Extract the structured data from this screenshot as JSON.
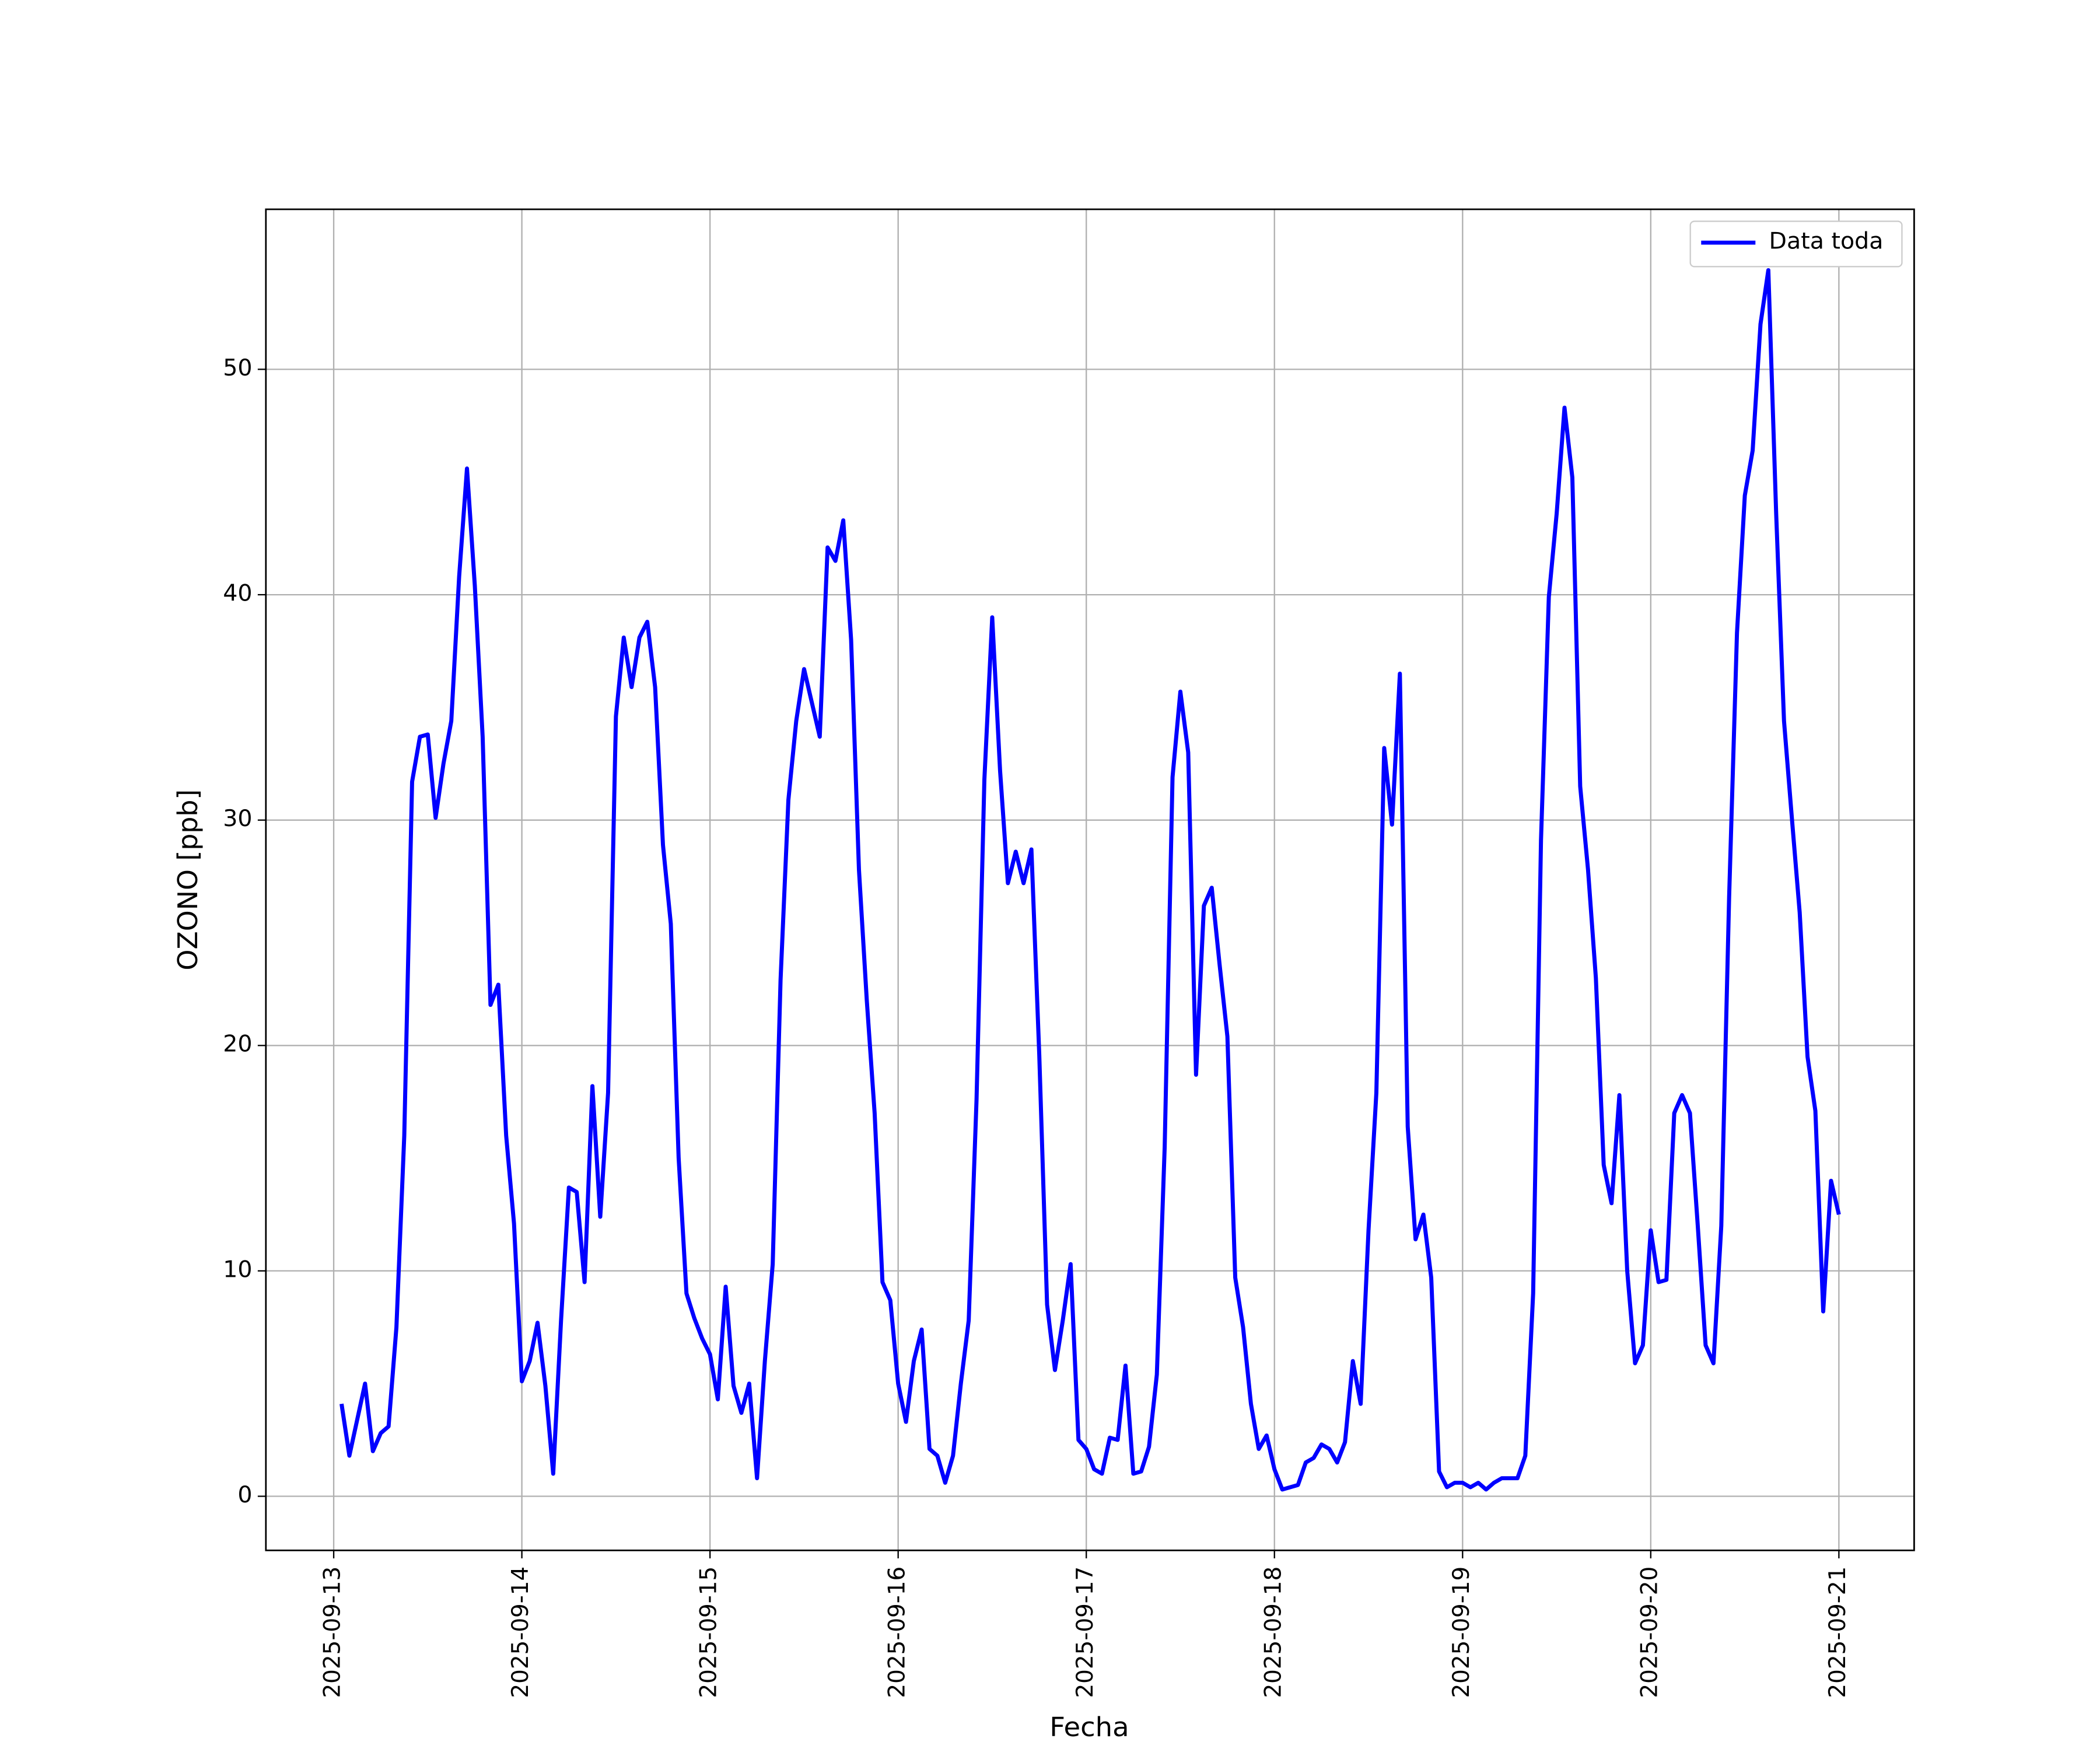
{
  "chart_data": {
    "type": "line",
    "xlabel": "Fecha",
    "ylabel": "OZONO [ppb]",
    "x": [
      "2025-09-13 01:00",
      "2025-09-13 02:00",
      "2025-09-13 03:00",
      "2025-09-13 04:00",
      "2025-09-13 05:00",
      "2025-09-13 06:00",
      "2025-09-13 07:00",
      "2025-09-13 08:00",
      "2025-09-13 09:00",
      "2025-09-13 10:00",
      "2025-09-13 11:00",
      "2025-09-13 12:00",
      "2025-09-13 13:00",
      "2025-09-13 14:00",
      "2025-09-13 15:00",
      "2025-09-13 16:00",
      "2025-09-13 17:00",
      "2025-09-13 18:00",
      "2025-09-13 19:00",
      "2025-09-13 20:00",
      "2025-09-13 21:00",
      "2025-09-13 22:00",
      "2025-09-13 23:00",
      "2025-09-14 00:00",
      "2025-09-14 01:00",
      "2025-09-14 02:00",
      "2025-09-14 03:00",
      "2025-09-14 04:00",
      "2025-09-14 05:00",
      "2025-09-14 06:00",
      "2025-09-14 07:00",
      "2025-09-14 08:00",
      "2025-09-14 09:00",
      "2025-09-14 10:00",
      "2025-09-14 11:00",
      "2025-09-14 12:00",
      "2025-09-14 13:00",
      "2025-09-14 14:00",
      "2025-09-14 15:00",
      "2025-09-14 16:00",
      "2025-09-14 17:00",
      "2025-09-14 18:00",
      "2025-09-14 19:00",
      "2025-09-14 20:00",
      "2025-09-14 21:00",
      "2025-09-14 22:00",
      "2025-09-14 23:00",
      "2025-09-15 00:00",
      "2025-09-15 01:00",
      "2025-09-15 02:00",
      "2025-09-15 03:00",
      "2025-09-15 04:00",
      "2025-09-15 05:00",
      "2025-09-15 06:00",
      "2025-09-15 07:00",
      "2025-09-15 08:00",
      "2025-09-15 09:00",
      "2025-09-15 10:00",
      "2025-09-15 11:00",
      "2025-09-15 12:00",
      "2025-09-15 13:00",
      "2025-09-15 14:00",
      "2025-09-15 15:00",
      "2025-09-15 16:00",
      "2025-09-15 17:00",
      "2025-09-15 18:00",
      "2025-09-15 19:00",
      "2025-09-15 20:00",
      "2025-09-15 21:00",
      "2025-09-15 22:00",
      "2025-09-15 23:00",
      "2025-09-16 00:00",
      "2025-09-16 01:00",
      "2025-09-16 02:00",
      "2025-09-16 03:00",
      "2025-09-16 04:00",
      "2025-09-16 05:00",
      "2025-09-16 06:00",
      "2025-09-16 07:00",
      "2025-09-16 08:00",
      "2025-09-16 09:00",
      "2025-09-16 10:00",
      "2025-09-16 11:00",
      "2025-09-16 12:00",
      "2025-09-16 13:00",
      "2025-09-16 14:00",
      "2025-09-16 15:00",
      "2025-09-16 16:00",
      "2025-09-16 17:00",
      "2025-09-16 18:00",
      "2025-09-16 19:00",
      "2025-09-16 20:00",
      "2025-09-16 21:00",
      "2025-09-16 22:00",
      "2025-09-16 23:00",
      "2025-09-17 00:00",
      "2025-09-17 01:00",
      "2025-09-17 02:00",
      "2025-09-17 03:00",
      "2025-09-17 04:00",
      "2025-09-17 05:00",
      "2025-09-17 06:00",
      "2025-09-17 07:00",
      "2025-09-17 08:00",
      "2025-09-17 09:00",
      "2025-09-17 10:00",
      "2025-09-17 11:00",
      "2025-09-17 12:00",
      "2025-09-17 13:00",
      "2025-09-17 14:00",
      "2025-09-17 15:00",
      "2025-09-17 16:00",
      "2025-09-17 17:00",
      "2025-09-17 18:00",
      "2025-09-17 19:00",
      "2025-09-17 20:00",
      "2025-09-17 21:00",
      "2025-09-17 22:00",
      "2025-09-17 23:00",
      "2025-09-18 00:00",
      "2025-09-18 01:00",
      "2025-09-18 02:00",
      "2025-09-18 03:00",
      "2025-09-18 04:00",
      "2025-09-18 05:00",
      "2025-09-18 06:00",
      "2025-09-18 07:00",
      "2025-09-18 08:00",
      "2025-09-18 09:00",
      "2025-09-18 10:00",
      "2025-09-18 11:00",
      "2025-09-18 12:00",
      "2025-09-18 13:00",
      "2025-09-18 14:00",
      "2025-09-18 15:00",
      "2025-09-18 16:00",
      "2025-09-18 17:00",
      "2025-09-18 18:00",
      "2025-09-18 19:00",
      "2025-09-18 20:00",
      "2025-09-18 21:00",
      "2025-09-18 22:00",
      "2025-09-18 23:00",
      "2025-09-19 00:00",
      "2025-09-19 01:00",
      "2025-09-19 02:00",
      "2025-09-19 03:00",
      "2025-09-19 04:00",
      "2025-09-19 05:00",
      "2025-09-19 06:00",
      "2025-09-19 07:00",
      "2025-09-19 08:00",
      "2025-09-19 09:00",
      "2025-09-19 10:00",
      "2025-09-19 11:00",
      "2025-09-19 12:00",
      "2025-09-19 13:00",
      "2025-09-19 14:00",
      "2025-09-19 15:00",
      "2025-09-19 16:00",
      "2025-09-19 17:00",
      "2025-09-19 18:00",
      "2025-09-19 19:00",
      "2025-09-19 20:00",
      "2025-09-19 21:00",
      "2025-09-19 22:00",
      "2025-09-19 23:00",
      "2025-09-20 00:00",
      "2025-09-20 01:00",
      "2025-09-20 02:00",
      "2025-09-20 03:00",
      "2025-09-20 04:00",
      "2025-09-20 05:00",
      "2025-09-20 06:00",
      "2025-09-20 07:00",
      "2025-09-20 08:00",
      "2025-09-20 09:00",
      "2025-09-20 10:00",
      "2025-09-20 11:00",
      "2025-09-20 12:00",
      "2025-09-20 13:00",
      "2025-09-20 14:00",
      "2025-09-20 15:00",
      "2025-09-20 16:00",
      "2025-09-20 17:00",
      "2025-09-20 18:00",
      "2025-09-20 19:00",
      "2025-09-20 20:00",
      "2025-09-20 21:00",
      "2025-09-20 22:00",
      "2025-09-20 23:00",
      "2025-09-21 00:00"
    ],
    "series": [
      {
        "name": "Data toda",
        "color": "#0000ff",
        "values": [
          4.1,
          1.8,
          3.4,
          5.0,
          2.0,
          2.8,
          3.1,
          7.5,
          16.0,
          31.7,
          33.7,
          33.8,
          30.1,
          32.5,
          34.4,
          40.8,
          45.6,
          40.4,
          33.7,
          21.8,
          22.7,
          16.0,
          12.1,
          5.1,
          6.0,
          7.7,
          4.9,
          1.0,
          7.8,
          13.7,
          13.5,
          9.5,
          18.2,
          12.4,
          17.9,
          34.6,
          38.1,
          35.9,
          38.1,
          38.8,
          35.9,
          28.9,
          25.4,
          15.0,
          9.0,
          7.9,
          7.0,
          6.3,
          4.3,
          9.3,
          4.9,
          3.7,
          5.0,
          0.8,
          6.0,
          10.3,
          22.9,
          30.9,
          34.4,
          36.7,
          35.2,
          33.7,
          42.1,
          41.5,
          43.3,
          38.0,
          27.8,
          22.0,
          17.0,
          9.5,
          8.7,
          5.0,
          3.3,
          6.0,
          7.4,
          2.1,
          1.8,
          0.6,
          1.8,
          5.0,
          7.8,
          17.6,
          31.8,
          39.0,
          32.2,
          27.2,
          28.6,
          27.2,
          28.7,
          19.6,
          8.5,
          5.6,
          7.8,
          10.3,
          2.5,
          2.1,
          1.2,
          1.0,
          2.6,
          2.5,
          5.8,
          1.0,
          1.1,
          2.2,
          5.4,
          15.5,
          31.9,
          35.7,
          33.0,
          18.7,
          26.2,
          27.0,
          23.6,
          20.4,
          9.7,
          7.5,
          4.1,
          2.1,
          2.7,
          1.2,
          0.3,
          0.4,
          0.5,
          1.5,
          1.7,
          2.3,
          2.1,
          1.5,
          2.4,
          6.0,
          4.1,
          11.8,
          17.9,
          33.2,
          29.8,
          36.5,
          16.4,
          11.4,
          12.5,
          9.7,
          1.1,
          0.4,
          0.6,
          0.6,
          0.4,
          0.6,
          0.3,
          0.6,
          0.8,
          0.8,
          0.8,
          1.8,
          9.0,
          29.1,
          39.9,
          43.6,
          48.3,
          45.2,
          31.5,
          27.8,
          23.0,
          14.7,
          13.0,
          17.8,
          10.0,
          5.9,
          6.7,
          11.8,
          9.5,
          9.6,
          17.0,
          17.8,
          17.0,
          12.0,
          6.7,
          5.9,
          12.0,
          26.6,
          38.3,
          44.4,
          46.4,
          52.0,
          54.4,
          43.6,
          34.4,
          30.1,
          25.9,
          19.5,
          17.1,
          8.2,
          14.0,
          12.5
        ]
      }
    ],
    "xlim": [
      "2025-09-12 15:21",
      "2025-09-21 09:36"
    ],
    "xticks": [
      "2025-09-13",
      "2025-09-14",
      "2025-09-15",
      "2025-09-16",
      "2025-09-17",
      "2025-09-18",
      "2025-09-19",
      "2025-09-20",
      "2025-09-21"
    ],
    "ylim": [
      -2.4,
      57.1
    ],
    "yticks": [
      0,
      10,
      20,
      30,
      40,
      50
    ],
    "grid": true,
    "legend": "upper right"
  }
}
